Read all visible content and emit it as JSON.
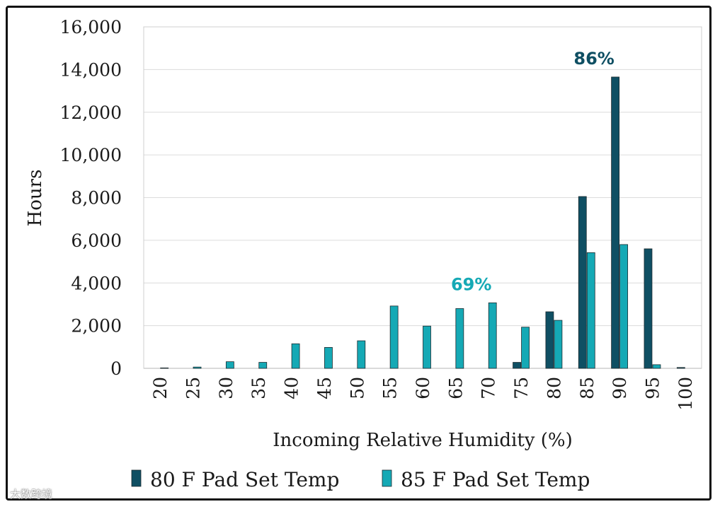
{
  "chart_data": {
    "type": "bar",
    "xlabel": "Incoming Relative Humidity (%)",
    "ylabel": "Hours",
    "ylim": [
      0,
      16000
    ],
    "yticks": [
      0,
      2000,
      4000,
      6000,
      8000,
      10000,
      12000,
      14000,
      16000
    ],
    "ytick_labels": [
      "0",
      "2,000",
      "4,000",
      "6,000",
      "8,000",
      "10,000",
      "12,000",
      "14,000",
      "16,000"
    ],
    "grid": true,
    "legend_position": "bottom",
    "categories": [
      "20",
      "25",
      "30",
      "35",
      "40",
      "45",
      "50",
      "55",
      "60",
      "65",
      "70",
      "75",
      "80",
      "85",
      "90",
      "95",
      "100"
    ],
    "series": [
      {
        "name": "80 F Pad Set Temp",
        "color": "#0f4f63",
        "values": [
          0,
          0,
          0,
          0,
          0,
          0,
          0,
          0,
          0,
          0,
          0,
          280,
          2650,
          8050,
          13650,
          5600,
          40
        ]
      },
      {
        "name": "85 F Pad Set Temp",
        "color": "#15a9b5",
        "values": [
          20,
          60,
          310,
          280,
          1150,
          980,
          1290,
          2920,
          1980,
          2800,
          3070,
          1930,
          2250,
          5420,
          5800,
          170,
          0
        ]
      }
    ],
    "annotations": [
      {
        "text": "86%",
        "series": 0,
        "category": "90",
        "color": "#0f4f63"
      },
      {
        "text": "69%",
        "series": 1,
        "category": "70",
        "color": "#15a9b5"
      }
    ]
  },
  "watermark": "大数跨境"
}
